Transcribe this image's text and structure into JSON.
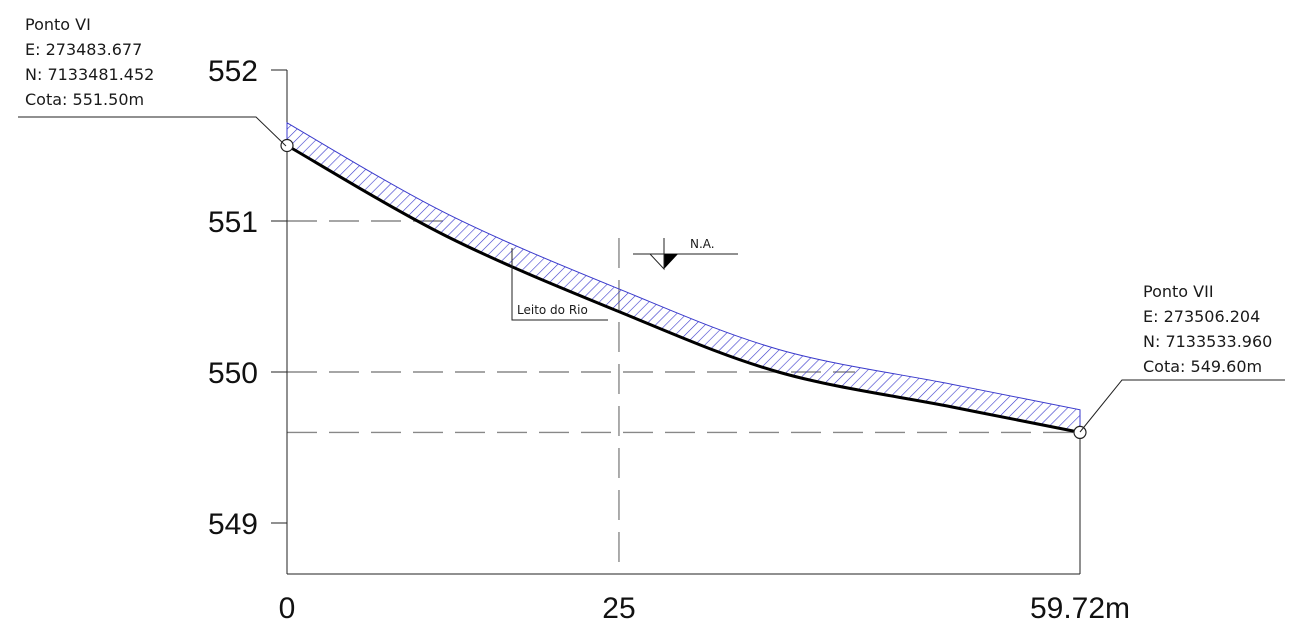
{
  "chart_data": {
    "type": "line",
    "x_unit": "m",
    "y_unit": "m",
    "x_ticks": [
      0,
      25,
      59.72
    ],
    "x_tick_labels": [
      "0",
      "25",
      "59.72m"
    ],
    "y_ticks": [
      552,
      551,
      550,
      549
    ],
    "y_tick_labels": [
      "552",
      "551",
      "550",
      "549"
    ],
    "xlim": [
      0,
      59.72
    ],
    "ylim": [
      548.7,
      552.0
    ],
    "riverbed": {
      "name": "Leito do Rio",
      "points": [
        [
          0,
          551.5
        ],
        [
          12,
          550.9
        ],
        [
          25,
          550.4
        ],
        [
          37,
          550.0
        ],
        [
          50,
          549.77
        ],
        [
          59.72,
          549.6
        ]
      ]
    },
    "water_surface_offset": 0.15,
    "water_marker": {
      "x": 25,
      "label": "N.A."
    },
    "start_point": {
      "name": "Ponto VI",
      "e": "E: 273483.677",
      "n": "N: 7133481.452",
      "cota": "Cota: 551.50m",
      "x": 0,
      "y": 551.5
    },
    "end_point": {
      "name": "Ponto VII",
      "e": "E: 273506.204",
      "n": "N: 7133533.960",
      "cota": "Cota: 549.60m",
      "x": 59.72,
      "y": 549.6
    },
    "reference_levels": [
      551.0,
      550.0,
      549.6
    ],
    "colors": {
      "hatch": "#3a3acc",
      "bed": "#000000",
      "guides": "#888888"
    }
  }
}
